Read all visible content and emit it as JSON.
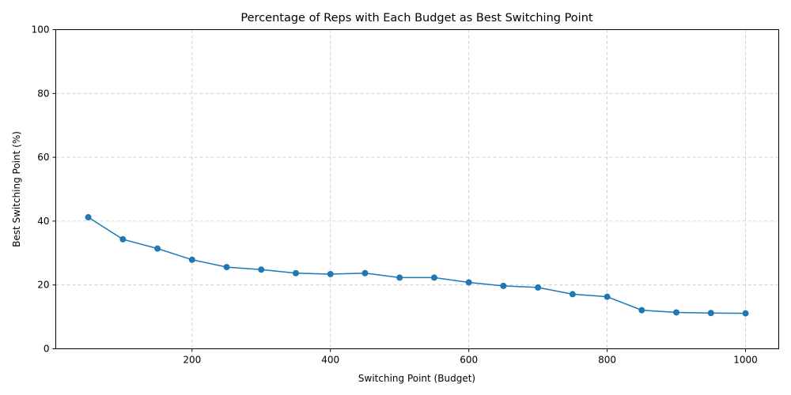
{
  "chart_data": {
    "type": "line",
    "title": "Percentage of Reps with Each Budget as Best Switching Point",
    "xlabel": "Switching Point (Budget)",
    "ylabel": "Best Switching Point (%)",
    "xlim": [
      3,
      1048
    ],
    "ylim": [
      0,
      100
    ],
    "xticks": [
      200,
      400,
      600,
      800,
      1000
    ],
    "yticks": [
      0,
      20,
      40,
      60,
      80,
      100
    ],
    "grid": true,
    "color": "#1f77b4",
    "series": [
      {
        "x": [
          50,
          100,
          150,
          200,
          250,
          300,
          350,
          400,
          450,
          500,
          550,
          600,
          650,
          700,
          750,
          800,
          850,
          900,
          950,
          1000
        ],
        "values": [
          41.2,
          34.3,
          31.4,
          27.9,
          25.6,
          24.8,
          23.7,
          23.4,
          23.7,
          22.3,
          22.3,
          20.8,
          19.7,
          19.2,
          17.1,
          16.3,
          12.1,
          11.4,
          11.2,
          11.1
        ]
      }
    ]
  }
}
